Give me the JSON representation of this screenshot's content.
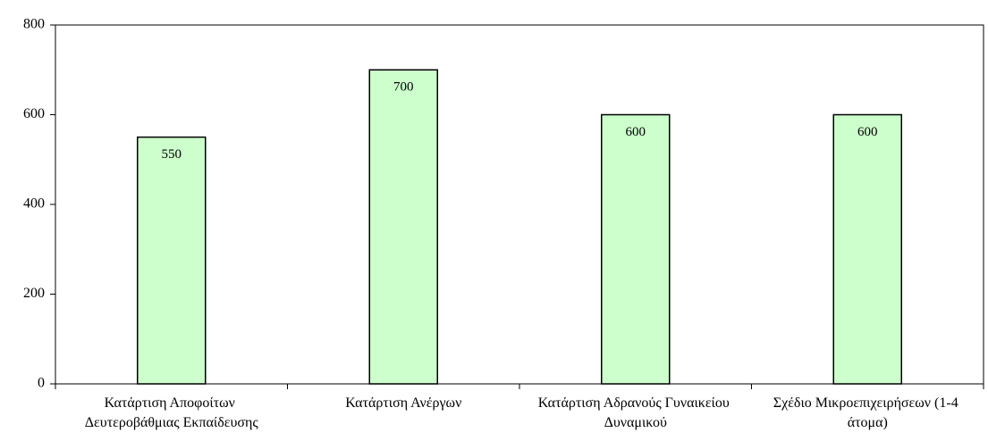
{
  "chart_data": {
    "type": "bar",
    "categories": [
      "Κατάρτιση Αποφοίτων Δευτεροβάθμιας Εκπαίδευσης",
      "Κατάρτιση Ανέργων",
      "Κατάρτιση Αδρανούς Γυναικείου Δυναμικού",
      "Σχέδιο Μικροεπιχειρήσεων (1-4 άτομα)"
    ],
    "values": [
      550,
      700,
      600,
      600
    ],
    "color": "#ccffcc",
    "ylim": [
      0,
      800
    ],
    "yticks": [
      0,
      200,
      400,
      600,
      800
    ],
    "grid": false
  }
}
